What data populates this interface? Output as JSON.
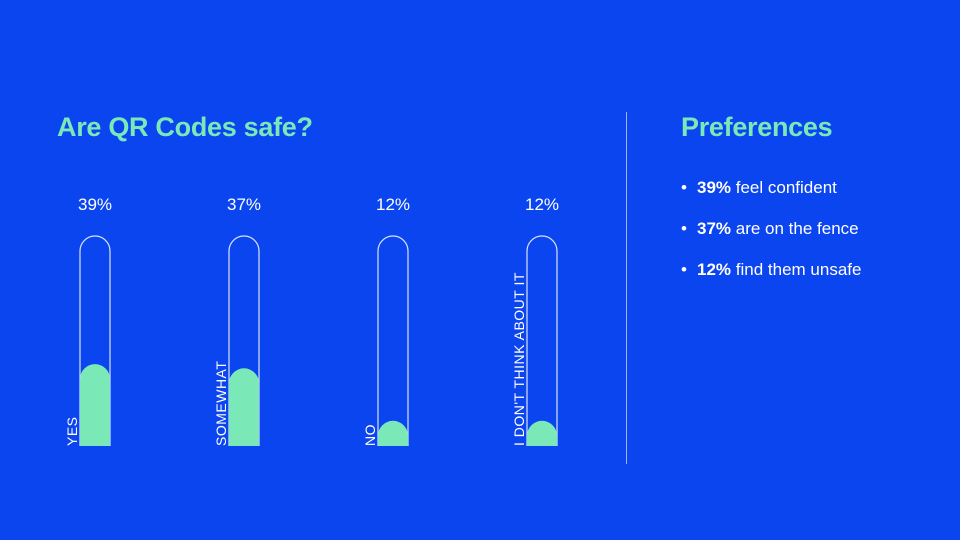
{
  "colors": {
    "background": "#0a45f0",
    "accent": "#7be8b8",
    "text": "#ffffff",
    "outline": "#d8e2ff"
  },
  "chart_title": "Are QR Codes safe?",
  "chart_data": {
    "type": "bar",
    "title": "Are QR Codes safe?",
    "categories": [
      "YES",
      "SOMEWHAT",
      "NO",
      "I DON'T THINK ABOUT IT"
    ],
    "values": [
      39,
      37,
      12,
      12
    ],
    "value_labels": [
      "39%",
      "37%",
      "12%",
      "12%"
    ],
    "ylim": [
      0,
      100
    ],
    "grid": false,
    "style": "vertical pill-shaped thermometer bars with rotated category labels"
  },
  "preferences": {
    "title": "Preferences",
    "items": [
      {
        "bullet": "•",
        "value": "39%",
        "text": " feel confident"
      },
      {
        "bullet": "•",
        "value": "37%",
        "text": " are on the fence"
      },
      {
        "bullet": "•",
        "value": "12%",
        "text": " find them unsafe"
      }
    ]
  }
}
